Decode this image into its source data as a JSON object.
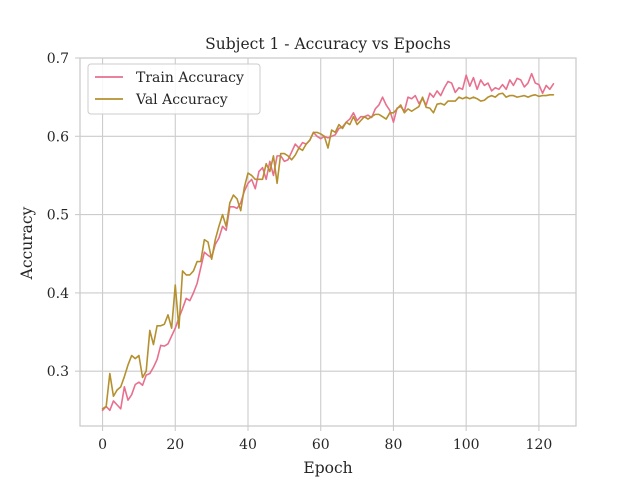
{
  "chart_data": {
    "type": "line",
    "title": "Subject 1 - Accuracy vs Epochs",
    "xlabel": "Epoch",
    "ylabel": "Accuracy",
    "xlim": [
      -6.2,
      130.2
    ],
    "ylim": [
      0.23,
      0.7
    ],
    "xticks": [
      0,
      20,
      40,
      60,
      80,
      100,
      120
    ],
    "yticks": [
      0.3,
      0.4,
      0.5,
      0.6,
      0.7
    ],
    "grid": true,
    "legend_position": "top-left",
    "x_start": 0,
    "series": [
      {
        "name": "Train Accuracy",
        "color": "#e8708f",
        "values": [
          0.25,
          0.255,
          0.25,
          0.262,
          0.257,
          0.252,
          0.28,
          0.263,
          0.27,
          0.283,
          0.286,
          0.282,
          0.295,
          0.297,
          0.305,
          0.315,
          0.333,
          0.332,
          0.335,
          0.345,
          0.355,
          0.368,
          0.38,
          0.393,
          0.39,
          0.4,
          0.412,
          0.432,
          0.452,
          0.448,
          0.445,
          0.462,
          0.47,
          0.485,
          0.48,
          0.51,
          0.51,
          0.508,
          0.515,
          0.53,
          0.54,
          0.545,
          0.533,
          0.555,
          0.56,
          0.545,
          0.568,
          0.55,
          0.575,
          0.575,
          0.568,
          0.57,
          0.58,
          0.59,
          0.585,
          0.592,
          0.59,
          0.595,
          0.605,
          0.6,
          0.597,
          0.6,
          0.598,
          0.6,
          0.602,
          0.61,
          0.612,
          0.618,
          0.622,
          0.63,
          0.62,
          0.625,
          0.625,
          0.627,
          0.624,
          0.635,
          0.64,
          0.65,
          0.64,
          0.633,
          0.618,
          0.636,
          0.638,
          0.632,
          0.65,
          0.648,
          0.652,
          0.642,
          0.648,
          0.64,
          0.655,
          0.65,
          0.658,
          0.652,
          0.662,
          0.67,
          0.668,
          0.656,
          0.662,
          0.66,
          0.678,
          0.664,
          0.675,
          0.66,
          0.672,
          0.665,
          0.668,
          0.658,
          0.662,
          0.66,
          0.666,
          0.66,
          0.672,
          0.665,
          0.674,
          0.672,
          0.663,
          0.668,
          0.68,
          0.668,
          0.666,
          0.655,
          0.665,
          0.66,
          0.667
        ]
      },
      {
        "name": "Val Accuracy",
        "color": "#b5902f",
        "values": [
          0.252,
          0.255,
          0.297,
          0.268,
          0.276,
          0.28,
          0.293,
          0.308,
          0.32,
          0.316,
          0.32,
          0.292,
          0.3,
          0.352,
          0.334,
          0.358,
          0.358,
          0.36,
          0.372,
          0.355,
          0.41,
          0.355,
          0.428,
          0.423,
          0.423,
          0.428,
          0.44,
          0.44,
          0.468,
          0.465,
          0.443,
          0.468,
          0.485,
          0.5,
          0.485,
          0.515,
          0.525,
          0.52,
          0.505,
          0.535,
          0.553,
          0.55,
          0.545,
          0.545,
          0.545,
          0.565,
          0.555,
          0.575,
          0.54,
          0.578,
          0.578,
          0.575,
          0.57,
          0.576,
          0.585,
          0.582,
          0.59,
          0.595,
          0.605,
          0.605,
          0.603,
          0.6,
          0.585,
          0.608,
          0.605,
          0.615,
          0.61,
          0.618,
          0.615,
          0.625,
          0.615,
          0.62,
          0.625,
          0.622,
          0.625,
          0.628,
          0.628,
          0.625,
          0.622,
          0.63,
          0.63,
          0.635,
          0.64,
          0.63,
          0.635,
          0.632,
          0.635,
          0.638,
          0.65,
          0.637,
          0.636,
          0.63,
          0.641,
          0.642,
          0.64,
          0.645,
          0.645,
          0.645,
          0.65,
          0.648,
          0.65,
          0.648,
          0.65,
          0.648,
          0.645,
          0.646,
          0.65,
          0.652,
          0.65,
          0.654,
          0.655,
          0.65,
          0.652,
          0.652,
          0.65,
          0.651,
          0.652,
          0.65,
          0.652,
          0.653,
          0.651,
          0.652,
          0.652,
          0.653,
          0.653
        ]
      }
    ]
  }
}
